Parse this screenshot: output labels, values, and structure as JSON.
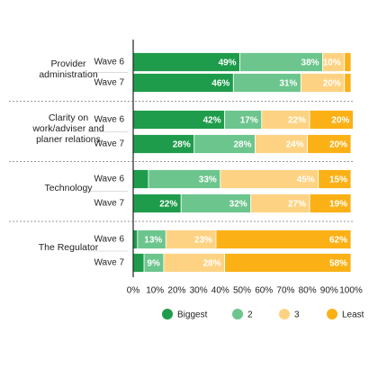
{
  "chart_data": {
    "type": "stacked-barh",
    "groups": [
      {
        "name": "Provider administration",
        "categories": [
          "Wave 6",
          "Wave 7"
        ]
      },
      {
        "name": "Clarity on work/adviser and planer relations",
        "categories": [
          "Wave 6",
          "Wave 7"
        ]
      },
      {
        "name": "Technology",
        "categories": [
          "Wave 6",
          "Wave 7"
        ]
      },
      {
        "name": "The Regulator",
        "categories": [
          "Wave 6",
          "Wave 7"
        ]
      }
    ],
    "series": [
      {
        "name": "Biggest",
        "color": "#1f9c4b",
        "values": [
          49,
          46,
          42,
          28,
          7,
          22,
          2,
          5
        ],
        "value_labels": [
          "49%",
          "46%",
          "42%",
          "28%",
          null,
          "22%",
          null,
          null
        ]
      },
      {
        "name": "2",
        "color": "#6cc58d",
        "values": [
          38,
          31,
          17,
          28,
          33,
          32,
          13,
          9
        ],
        "value_labels": [
          "38%",
          "31%",
          "17%",
          "28%",
          "33%",
          "32%",
          "13%",
          "9%"
        ]
      },
      {
        "name": "3",
        "color": "#fdd383",
        "values": [
          10,
          20,
          22,
          24,
          45,
          27,
          23,
          28
        ],
        "value_labels": [
          "10%",
          "20%",
          "22%",
          "24%",
          "45%",
          "27%",
          "23%",
          "28%"
        ]
      },
      {
        "name": "Least",
        "color": "#fbb116",
        "values": [
          3,
          3,
          20,
          20,
          15,
          19,
          62,
          58
        ],
        "value_labels": [
          null,
          null,
          "20%",
          "20%",
          "15%",
          "19%",
          "62%",
          "58%"
        ]
      }
    ],
    "xlim": [
      0,
      100
    ],
    "xticks": [
      {
        "value": 0,
        "label": "0%"
      },
      {
        "value": 10,
        "label": "10%"
      },
      {
        "value": 20,
        "label": "20%"
      },
      {
        "value": 30,
        "label": "30%"
      },
      {
        "value": 40,
        "label": "40%"
      },
      {
        "value": 50,
        "label": "50%"
      },
      {
        "value": 60,
        "label": "60%"
      },
      {
        "value": 70,
        "label": "70%"
      },
      {
        "value": 80,
        "label": "80%"
      },
      {
        "value": 90,
        "label": "90%"
      },
      {
        "value": 100,
        "label": "100%"
      }
    ]
  }
}
